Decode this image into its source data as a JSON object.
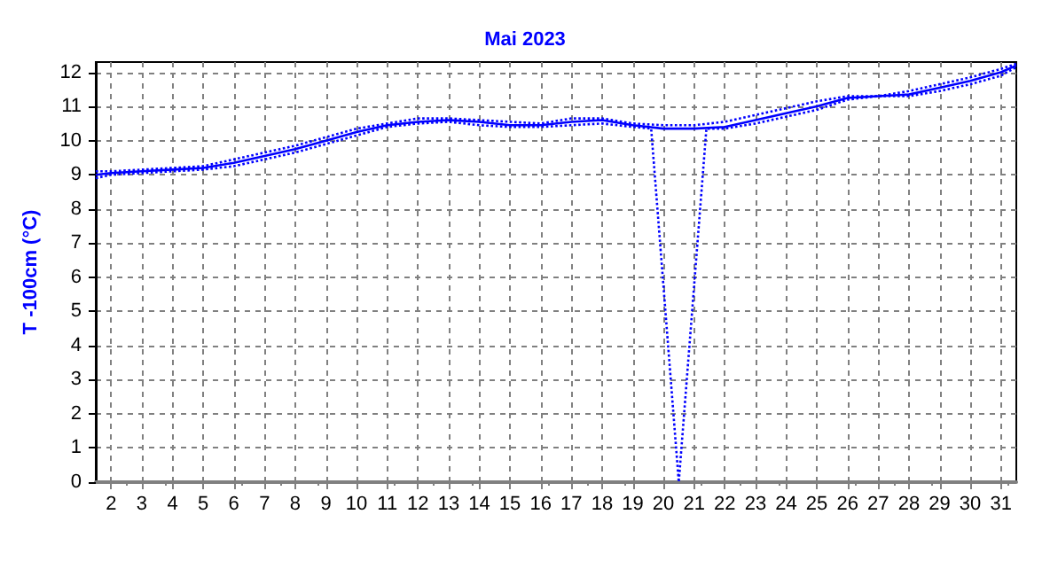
{
  "chart_data": {
    "type": "line",
    "title": "Mai 2023",
    "ylabel": "T -100cm (°C)",
    "xlim": [
      1.5,
      31.5
    ],
    "xticks": [
      2,
      3,
      4,
      5,
      6,
      7,
      8,
      9,
      10,
      11,
      12,
      13,
      14,
      15,
      16,
      17,
      18,
      19,
      20,
      21,
      22,
      23,
      24,
      25,
      26,
      27,
      28,
      29,
      30,
      31
    ],
    "ylim": [
      0,
      12.3
    ],
    "yticks": [
      0,
      1,
      2,
      3,
      4,
      5,
      6,
      7,
      8,
      9,
      10,
      11,
      12
    ],
    "grid": true,
    "marker": "none",
    "series": [
      {
        "color": "#0000ff",
        "line_style": "dotted",
        "x": [
          1.5,
          2,
          3,
          4,
          5,
          6,
          7,
          8,
          9,
          10,
          11,
          12,
          13,
          14,
          15,
          16,
          17,
          18,
          19,
          20,
          21,
          22,
          23,
          24,
          25,
          26,
          27,
          28,
          29,
          30,
          31,
          31.5
        ],
        "values": [
          9.1,
          9.1,
          9.15,
          9.2,
          9.25,
          9.45,
          9.65,
          9.85,
          10.1,
          10.35,
          10.5,
          10.65,
          10.65,
          10.6,
          10.55,
          10.5,
          10.65,
          10.65,
          10.5,
          10.45,
          10.45,
          10.55,
          10.75,
          10.95,
          11.15,
          11.3,
          11.3,
          11.45,
          11.65,
          11.85,
          12.1,
          12.25
        ]
      },
      {
        "color": "#0000ff",
        "line_style": "solid",
        "x": [
          1.5,
          2,
          3,
          4,
          5,
          6,
          7,
          8,
          9,
          10,
          11,
          12,
          13,
          14,
          15,
          16,
          17,
          18,
          19,
          20,
          21,
          22,
          23,
          24,
          25,
          26,
          27,
          28,
          29,
          30,
          31,
          31.5
        ],
        "values": [
          9.0,
          9.05,
          9.1,
          9.15,
          9.2,
          9.35,
          9.55,
          9.75,
          10.0,
          10.25,
          10.45,
          10.55,
          10.6,
          10.55,
          10.45,
          10.45,
          10.55,
          10.6,
          10.45,
          10.35,
          10.35,
          10.4,
          10.6,
          10.8,
          11.0,
          11.25,
          11.3,
          11.35,
          11.55,
          11.75,
          12.0,
          12.2
        ]
      },
      {
        "color": "#0000ff",
        "line_style": "dotted",
        "x": [
          1.5,
          2,
          3,
          4,
          5,
          6,
          7,
          8,
          9,
          10,
          11,
          12,
          13,
          14,
          15,
          16,
          17,
          18,
          19,
          19.6,
          20.5,
          21.4,
          22,
          23,
          24,
          25,
          26,
          27,
          28,
          29,
          30,
          31,
          31.5
        ],
        "values": [
          8.9,
          9.0,
          9.05,
          9.1,
          9.15,
          9.25,
          9.45,
          9.65,
          9.9,
          10.15,
          10.4,
          10.5,
          10.55,
          10.45,
          10.4,
          10.4,
          10.45,
          10.5,
          10.4,
          10.35,
          0,
          10.35,
          10.35,
          10.5,
          10.7,
          10.9,
          11.2,
          11.3,
          11.3,
          11.45,
          11.65,
          11.9,
          12.15
        ]
      }
    ]
  }
}
